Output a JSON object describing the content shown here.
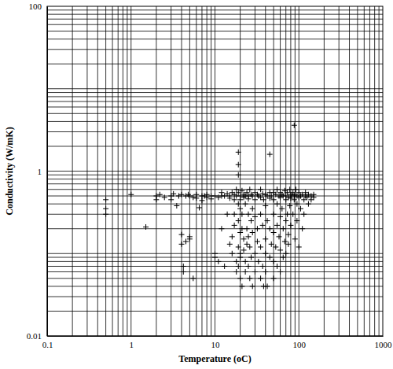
{
  "chart_data": {
    "type": "scatter",
    "x_label": "Temperature (oC)",
    "y_label": "Conductivity (W/mK)",
    "log": true,
    "grid": true,
    "color": "#000000",
    "marker": "plus",
    "xlim": [
      0.1,
      1000
    ],
    "ylim": [
      0.01,
      100
    ],
    "xticks": [
      0.1,
      1,
      10,
      100,
      1000
    ],
    "yticks": [
      0.01,
      1,
      100
    ],
    "x": [
      0.5,
      0.5,
      0.5,
      1,
      1.5,
      2,
      2,
      2.2,
      2.5,
      3,
      3,
      3.2,
      3.5,
      3.7,
      4,
      4,
      4,
      4.2,
      4.2,
      4.5,
      4.5,
      4.8,
      5,
      5,
      5,
      5.5,
      5.5,
      6,
      6,
      6.5,
      7,
      7,
      7.5,
      8,
      8,
      9,
      9,
      10,
      10,
      10,
      11,
      11,
      12,
      12,
      12,
      13,
      13,
      14,
      14,
      15,
      15,
      15,
      16,
      16,
      16,
      17,
      17,
      17,
      17,
      18,
      18,
      18,
      18,
      19,
      19,
      19,
      19,
      19,
      19,
      19,
      19,
      20,
      20,
      20,
      20,
      20,
      20,
      20,
      21,
      21,
      21,
      21,
      22,
      22,
      22,
      22,
      23,
      23,
      23,
      23,
      24,
      24,
      24,
      25,
      25,
      25,
      25,
      25,
      26,
      26,
      26,
      27,
      27,
      27,
      28,
      28,
      28,
      28,
      30,
      30,
      30,
      30,
      30,
      32,
      32,
      32,
      33,
      33,
      35,
      35,
      35,
      35,
      35,
      37,
      37,
      37,
      38,
      38,
      40,
      40,
      40,
      40,
      40,
      42,
      42,
      42,
      45,
      45,
      45,
      45,
      45,
      47,
      47,
      50,
      50,
      50,
      50,
      50,
      50,
      53,
      53,
      55,
      55,
      55,
      55,
      58,
      58,
      60,
      60,
      60,
      60,
      60,
      63,
      63,
      65,
      65,
      65,
      68,
      68,
      70,
      70,
      70,
      70,
      73,
      73,
      75,
      75,
      75,
      78,
      78,
      80,
      80,
      80,
      82,
      85,
      85,
      88,
      88,
      88,
      90,
      90,
      92,
      95,
      95,
      95,
      100,
      100,
      100,
      105,
      105,
      110,
      110,
      115,
      115,
      120,
      120,
      125,
      130,
      130,
      140,
      140,
      150,
      150
    ],
    "values": [
      0.45,
      0.35,
      0.3,
      0.52,
      0.21,
      0.5,
      0.45,
      0.52,
      0.48,
      0.5,
      0.45,
      0.53,
      0.38,
      0.5,
      0.52,
      0.17,
      0.13,
      0.07,
      0.06,
      0.5,
      0.14,
      0.52,
      0.5,
      0.16,
      0.15,
      0.48,
      0.05,
      0.52,
      0.47,
      0.36,
      0.5,
      0.44,
      0.5,
      0.48,
      0.52,
      0.5,
      0.46,
      0.1,
      0.09,
      0.5,
      0.48,
      0.08,
      0.5,
      0.2,
      0.55,
      0.5,
      0.07,
      0.53,
      0.3,
      0.5,
      0.47,
      0.13,
      0.55,
      0.16,
      0.1,
      0.52,
      0.45,
      0.3,
      0.22,
      0.5,
      0.6,
      0.08,
      0.06,
      1.7,
      1.2,
      0.9,
      0.55,
      0.4,
      0.25,
      0.12,
      0.07,
      0.5,
      0.45,
      0.35,
      0.18,
      0.1,
      0.09,
      0.05,
      0.58,
      0.3,
      0.2,
      0.04,
      0.52,
      0.48,
      0.15,
      0.11,
      0.5,
      0.4,
      0.08,
      0.06,
      0.55,
      0.2,
      0.13,
      0.5,
      0.46,
      0.3,
      0.16,
      0.07,
      0.6,
      0.12,
      0.05,
      0.52,
      0.25,
      0.09,
      0.5,
      0.35,
      0.18,
      0.04,
      0.55,
      0.45,
      0.28,
      0.1,
      0.06,
      0.52,
      0.2,
      0.14,
      0.5,
      0.08,
      0.6,
      0.48,
      0.3,
      0.12,
      0.05,
      0.53,
      0.22,
      0.07,
      0.45,
      0.04,
      0.52,
      0.38,
      0.15,
      0.1,
      0.06,
      0.5,
      0.25,
      0.04,
      1.6,
      0.55,
      0.47,
      0.2,
      0.09,
      0.5,
      0.13,
      0.55,
      0.45,
      0.3,
      0.18,
      0.08,
      0.05,
      0.52,
      0.12,
      0.6,
      0.4,
      0.22,
      0.07,
      0.5,
      0.16,
      0.55,
      0.48,
      0.28,
      0.11,
      0.06,
      0.52,
      0.35,
      0.5,
      0.2,
      0.09,
      0.58,
      0.14,
      0.5,
      0.45,
      0.25,
      0.1,
      0.55,
      0.3,
      0.48,
      0.17,
      0.13,
      0.6,
      0.38,
      0.52,
      0.22,
      0.47,
      0.5,
      0.55,
      0.3,
      3.6,
      0.5,
      0.45,
      0.52,
      0.15,
      0.6,
      0.5,
      0.25,
      0.4,
      0.55,
      0.48,
      0.12,
      0.5,
      0.35,
      0.52,
      0.2,
      0.45,
      0.3,
      0.5,
      0.55,
      0.48,
      0.52,
      0.4,
      0.5,
      0.45,
      0.48,
      0.52
    ]
  }
}
